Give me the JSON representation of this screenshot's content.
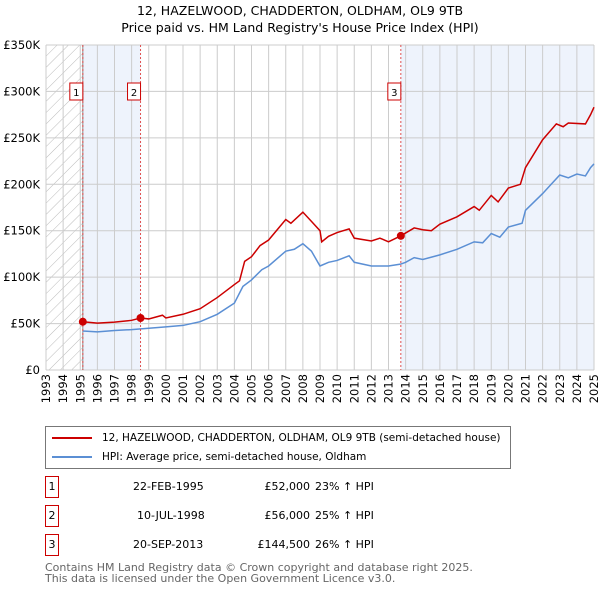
{
  "title": "12, HAZELWOOD, CHADDERTON, OLDHAM, OL9 9TB",
  "subtitle": "Price paid vs. HM Land Registry's House Price Index (HPI)",
  "chart_data": {
    "type": "line",
    "title": "12, HAZELWOOD, CHADDERTON, OLDHAM, OL9 9TB",
    "subtitle": "Price paid vs. HM Land Registry's House Price Index (HPI)",
    "xlim": [
      1993,
      2025
    ],
    "ylim": [
      0,
      350000
    ],
    "x_ticks": [
      "1993",
      "1994",
      "1995",
      "1996",
      "1997",
      "1998",
      "1999",
      "2000",
      "2001",
      "2002",
      "2003",
      "2004",
      "2005",
      "2006",
      "2007",
      "2008",
      "2009",
      "2010",
      "2011",
      "2012",
      "2013",
      "2014",
      "2015",
      "2016",
      "2017",
      "2018",
      "2019",
      "2020",
      "2021",
      "2022",
      "2023",
      "2024",
      "2025"
    ],
    "y_ticks": [
      {
        "v": 0,
        "label": "£0"
      },
      {
        "v": 50000,
        "label": "£50K"
      },
      {
        "v": 100000,
        "label": "£100K"
      },
      {
        "v": 150000,
        "label": "£150K"
      },
      {
        "v": 200000,
        "label": "£200K"
      },
      {
        "v": 250000,
        "label": "£250K"
      },
      {
        "v": 300000,
        "label": "£300K"
      },
      {
        "v": 350000,
        "label": "£350K"
      }
    ],
    "grid": true,
    "series": [
      {
        "name": "12, HAZELWOOD, CHADDERTON, OLDHAM, OL9 9TB (semi-detached house)",
        "color": "#cc0000",
        "points": [
          [
            1995.15,
            52000
          ],
          [
            1996,
            50500
          ],
          [
            1997,
            51500
          ],
          [
            1998,
            53500
          ],
          [
            1998.52,
            56000
          ],
          [
            1999,
            55000
          ],
          [
            1999.8,
            59000
          ],
          [
            2000,
            56000
          ],
          [
            2001,
            60000
          ],
          [
            2002,
            66000
          ],
          [
            2003,
            78000
          ],
          [
            2004,
            92000
          ],
          [
            2004.3,
            96000
          ],
          [
            2004.6,
            117000
          ],
          [
            2005,
            122000
          ],
          [
            2005.5,
            134000
          ],
          [
            2006,
            140000
          ],
          [
            2007,
            162000
          ],
          [
            2007.3,
            158000
          ],
          [
            2008,
            170000
          ],
          [
            2008.5,
            160000
          ],
          [
            2009,
            150000
          ],
          [
            2009.1,
            138000
          ],
          [
            2009.5,
            144000
          ],
          [
            2010,
            148000
          ],
          [
            2010.7,
            152000
          ],
          [
            2011,
            142000
          ],
          [
            2012,
            139000
          ],
          [
            2012.5,
            142000
          ],
          [
            2013,
            138000
          ],
          [
            2013.72,
            144500
          ],
          [
            2014.5,
            153000
          ],
          [
            2015,
            151000
          ],
          [
            2015.5,
            150000
          ],
          [
            2016,
            157000
          ],
          [
            2017,
            165000
          ],
          [
            2018,
            176000
          ],
          [
            2018.3,
            172000
          ],
          [
            2019,
            188000
          ],
          [
            2019.4,
            181000
          ],
          [
            2020,
            196000
          ],
          [
            2020.7,
            200000
          ],
          [
            2021,
            218000
          ],
          [
            2022,
            248000
          ],
          [
            2022.8,
            265000
          ],
          [
            2023.2,
            262000
          ],
          [
            2023.5,
            266000
          ],
          [
            2024.5,
            265000
          ],
          [
            2024.8,
            275000
          ],
          [
            2025,
            283000
          ]
        ]
      },
      {
        "name": "HPI: Average price, semi-detached house, Oldham",
        "color": "#5b8fd4",
        "points": [
          [
            1995.15,
            42000
          ],
          [
            1996,
            41000
          ],
          [
            1997,
            42500
          ],
          [
            1998,
            43500
          ],
          [
            1999,
            45000
          ],
          [
            2000,
            46500
          ],
          [
            2001,
            48000
          ],
          [
            2002,
            52000
          ],
          [
            2003,
            60000
          ],
          [
            2004,
            72000
          ],
          [
            2004.5,
            90000
          ],
          [
            2005,
            97000
          ],
          [
            2005.6,
            108000
          ],
          [
            2006,
            112000
          ],
          [
            2007,
            128000
          ],
          [
            2007.5,
            130000
          ],
          [
            2008,
            136000
          ],
          [
            2008.5,
            128000
          ],
          [
            2009,
            112000
          ],
          [
            2009.5,
            116000
          ],
          [
            2010,
            118000
          ],
          [
            2010.7,
            123000
          ],
          [
            2011,
            116000
          ],
          [
            2012,
            112000
          ],
          [
            2013,
            112000
          ],
          [
            2013.7,
            114000
          ],
          [
            2014,
            116000
          ],
          [
            2014.5,
            121000
          ],
          [
            2015,
            119000
          ],
          [
            2016,
            124000
          ],
          [
            2017,
            130000
          ],
          [
            2018,
            138000
          ],
          [
            2018.5,
            137000
          ],
          [
            2019,
            147000
          ],
          [
            2019.5,
            143000
          ],
          [
            2020,
            154000
          ],
          [
            2020.8,
            158000
          ],
          [
            2021,
            172000
          ],
          [
            2022,
            190000
          ],
          [
            2022.5,
            200000
          ],
          [
            2023,
            210000
          ],
          [
            2023.5,
            207000
          ],
          [
            2024,
            211000
          ],
          [
            2024.5,
            209000
          ],
          [
            2024.8,
            218000
          ],
          [
            2025,
            222000
          ]
        ]
      }
    ],
    "sales": [
      {
        "label": "1",
        "x": 1995.15,
        "y": 52000
      },
      {
        "label": "2",
        "x": 1998.52,
        "y": 56000
      },
      {
        "label": "3",
        "x": 2013.72,
        "y": 144500
      }
    ],
    "shaded_ranges": [
      [
        1995.15,
        1998.52
      ],
      [
        2013.72,
        2025
      ]
    ],
    "hatched_range": [
      1993,
      1995.15
    ]
  },
  "legend": [
    {
      "label": "12, HAZELWOOD, CHADDERTON, OLDHAM, OL9 9TB (semi-detached house)",
      "color": "#cc0000"
    },
    {
      "label": "HPI: Average price, semi-detached house, Oldham",
      "color": "#5b8fd4"
    }
  ],
  "transactions": [
    {
      "num": "1",
      "date": "22-FEB-1995",
      "price": "£52,000",
      "hpi": "23% ↑ HPI"
    },
    {
      "num": "2",
      "date": "10-JUL-1998",
      "price": "£56,000",
      "hpi": "25% ↑ HPI"
    },
    {
      "num": "3",
      "date": "20-SEP-2013",
      "price": "£144,500",
      "hpi": "26% ↑ HPI"
    }
  ],
  "footer": [
    "Contains HM Land Registry data © Crown copyright and database right 2025.",
    "This data is licensed under the Open Government Licence v3.0."
  ]
}
